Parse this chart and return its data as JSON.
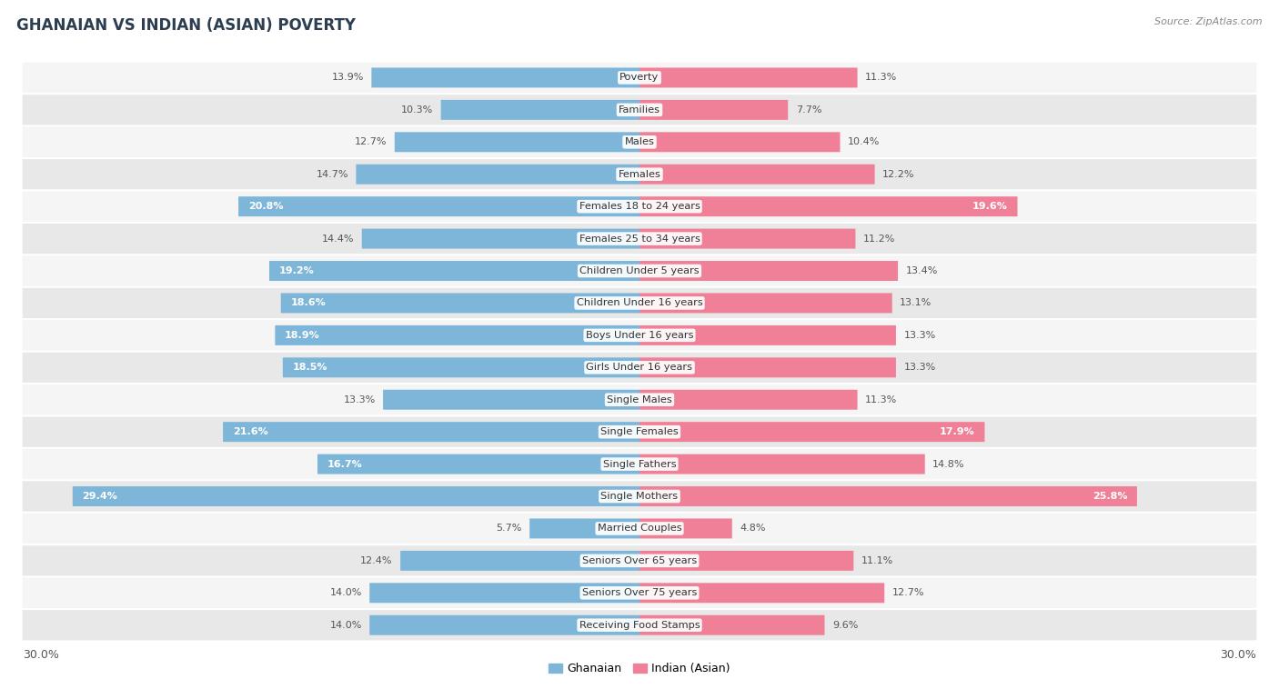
{
  "title": "GHANAIAN VS INDIAN (ASIAN) POVERTY",
  "source": "Source: ZipAtlas.com",
  "categories": [
    "Poverty",
    "Families",
    "Males",
    "Females",
    "Females 18 to 24 years",
    "Females 25 to 34 years",
    "Children Under 5 years",
    "Children Under 16 years",
    "Boys Under 16 years",
    "Girls Under 16 years",
    "Single Males",
    "Single Females",
    "Single Fathers",
    "Single Mothers",
    "Married Couples",
    "Seniors Over 65 years",
    "Seniors Over 75 years",
    "Receiving Food Stamps"
  ],
  "ghanaian": [
    13.9,
    10.3,
    12.7,
    14.7,
    20.8,
    14.4,
    19.2,
    18.6,
    18.9,
    18.5,
    13.3,
    21.6,
    16.7,
    29.4,
    5.7,
    12.4,
    14.0,
    14.0
  ],
  "indian": [
    11.3,
    7.7,
    10.4,
    12.2,
    19.6,
    11.2,
    13.4,
    13.1,
    13.3,
    13.3,
    11.3,
    17.9,
    14.8,
    25.8,
    4.8,
    11.1,
    12.7,
    9.6
  ],
  "ghanaian_color": "#7EB6D9",
  "indian_color": "#F08098",
  "background_color": "#ffffff",
  "row_color_light": "#f5f5f5",
  "row_color_dark": "#e8e8e8",
  "axis_max": 30.0,
  "legend_label_ghanaian": "Ghanaian",
  "legend_label_indian": "Indian (Asian)",
  "axis_label_left": "30.0%",
  "axis_label_right": "30.0%",
  "inside_label_threshold": 15.0
}
